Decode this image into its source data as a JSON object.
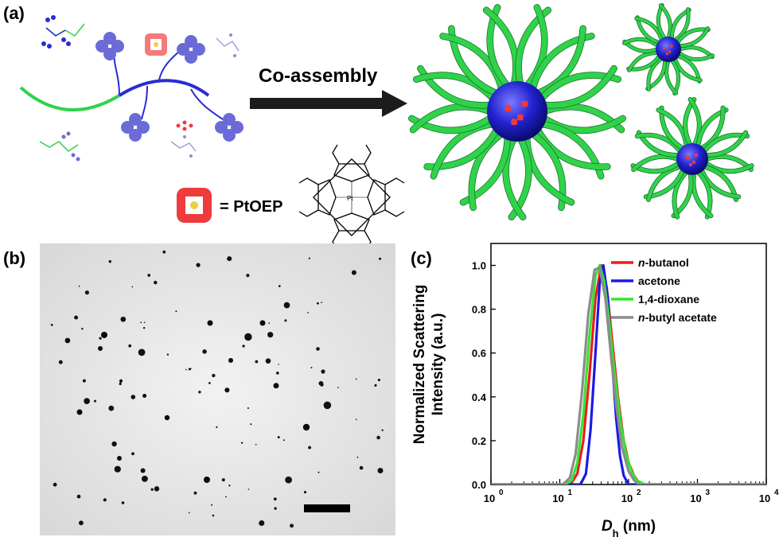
{
  "panels": {
    "a": "(a)",
    "b": "(b)",
    "c": "(c)"
  },
  "scheme": {
    "arrow_label": "Co-assembly",
    "legend_label": "= PtOEP",
    "porphyrin_metal": "Pt",
    "porphyrin_n": "N"
  },
  "colors": {
    "green_chain": "#2fd34a",
    "blue_block": "#2b2bd6",
    "blue_icon": "#6b6bd8",
    "ptoep_red": "#ee3b3b",
    "arrow": "#1c1c1c"
  },
  "chart_data": {
    "type": "line",
    "xscale": "log",
    "xlim": [
      1,
      10000
    ],
    "ylim": [
      0.0,
      1.1
    ],
    "x_ticks": [
      "10",
      "10",
      "10",
      "10",
      "10"
    ],
    "x_tick_exponents": [
      "0",
      "1",
      "2",
      "3",
      "4"
    ],
    "y_ticks": [
      "0.0",
      "0.2",
      "0.4",
      "0.6",
      "0.8",
      "1.0"
    ],
    "xlabel_main": "D",
    "xlabel_sub": "h",
    "xlabel_unit": " (nm)",
    "ylabel_line1": "Normalized Scattering",
    "ylabel_line2": "Intensity (a.u.)",
    "legend_position": "top-right",
    "series": [
      {
        "name_italic": "n",
        "name_rest": "-butanol",
        "color": "#ee1c1c",
        "x": [
          1,
          12,
          15,
          18,
          22,
          27,
          33,
          40,
          48,
          58,
          70,
          85,
          100,
          120,
          140,
          160,
          10000
        ],
        "y": [
          0,
          0,
          0.01,
          0.05,
          0.2,
          0.5,
          0.85,
          1.0,
          0.9,
          0.65,
          0.4,
          0.2,
          0.1,
          0.04,
          0.01,
          0,
          0
        ]
      },
      {
        "name_italic": "",
        "name_rest": "acetone",
        "color": "#1a1ae6",
        "x": [
          1,
          20,
          24,
          28,
          33,
          38,
          43,
          50,
          58,
          66,
          75,
          85,
          100,
          10000
        ],
        "y": [
          0,
          0,
          0.05,
          0.25,
          0.6,
          0.92,
          1.0,
          0.85,
          0.55,
          0.3,
          0.13,
          0.04,
          0,
          0
        ]
      },
      {
        "name_italic": "",
        "name_rest": "1,4-dioxane",
        "color": "#33e633",
        "x": [
          1,
          12,
          15,
          18,
          22,
          27,
          33,
          38,
          44,
          52,
          62,
          75,
          90,
          110,
          130,
          160,
          180,
          10000
        ],
        "y": [
          0,
          0,
          0.02,
          0.1,
          0.32,
          0.68,
          0.95,
          1.0,
          0.93,
          0.75,
          0.52,
          0.3,
          0.15,
          0.06,
          0.02,
          0.005,
          0,
          0
        ]
      },
      {
        "name_italic": "n",
        "name_rest": "-butyl acetate",
        "color": "#8c8c8c",
        "x": [
          1,
          11,
          14,
          17,
          21,
          26,
          32,
          38,
          46,
          55,
          66,
          80,
          100,
          120,
          140,
          10000
        ],
        "y": [
          0,
          0,
          0.03,
          0.14,
          0.42,
          0.78,
          0.98,
          0.99,
          0.85,
          0.6,
          0.36,
          0.17,
          0.06,
          0.02,
          0,
          0
        ]
      }
    ]
  }
}
